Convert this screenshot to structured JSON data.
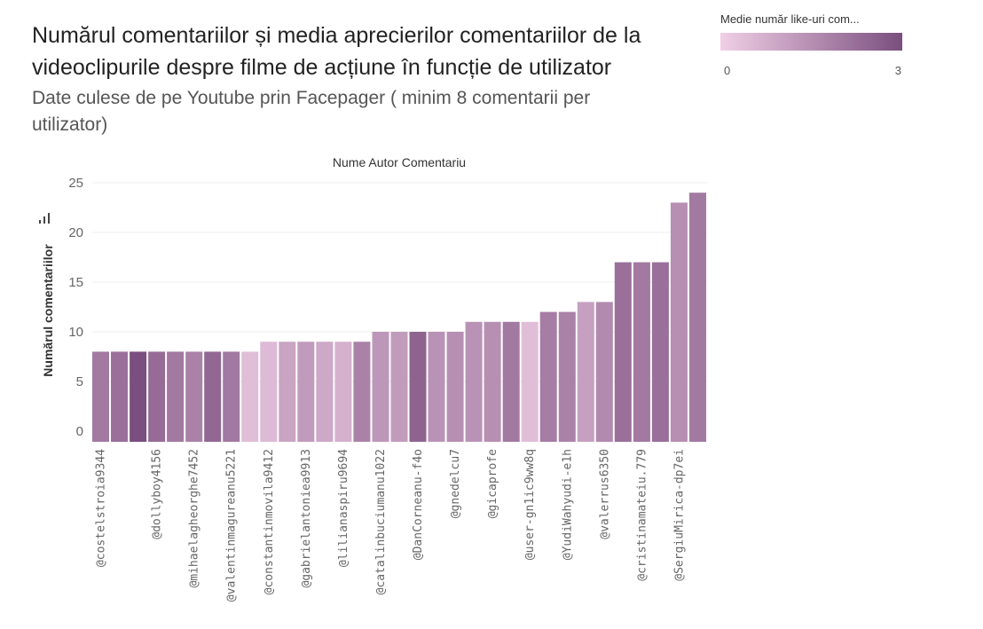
{
  "title": "Numărul comentariilor și media aprecierilor comentariilor de la videoclipurile despre filme de acțiune în funcție de utilizator",
  "subtitle": "Date culese de pe Youtube prin Facepager ( minim 8 comentarii per utilizator)",
  "legend": {
    "title": "Medie număr like-uri com...",
    "min_label": "0",
    "max_label": "3",
    "color_low": "#f1cfe6",
    "color_high": "#7a4e7e"
  },
  "chart_data": {
    "type": "bar",
    "title": "Numărul comentariilor și media aprecierilor comentariilor de la videoclipurile despre filme de acțiune în funcție de utilizator",
    "xlabel": "Nume Autor Comentariu",
    "ylabel": "Numărul comentariilor",
    "ylim": [
      0,
      25
    ],
    "yticks": [
      0,
      5,
      10,
      15,
      20,
      25
    ],
    "grid": true,
    "legend_position": "top-right",
    "bars": [
      {
        "label": "@costelstroia9344",
        "value": 8,
        "color_value": 2.0,
        "show_label": true
      },
      {
        "label": "",
        "value": 8,
        "color_value": 2.2,
        "show_label": false
      },
      {
        "label": "",
        "value": 8,
        "color_value": 3.0,
        "show_label": false
      },
      {
        "label": "@dollyboy4156",
        "value": 8,
        "color_value": 2.3,
        "show_label": true
      },
      {
        "label": "",
        "value": 8,
        "color_value": 2.0,
        "show_label": false
      },
      {
        "label": "@mihaelagheorghe7452",
        "value": 8,
        "color_value": 1.8,
        "show_label": true
      },
      {
        "label": "",
        "value": 8,
        "color_value": 2.4,
        "show_label": false
      },
      {
        "label": "@valentinmagureanu5221",
        "value": 8,
        "color_value": 2.0,
        "show_label": true
      },
      {
        "label": "",
        "value": 8,
        "color_value": 0.4,
        "show_label": false
      },
      {
        "label": "@constantinmovila9412",
        "value": 9,
        "color_value": 0.5,
        "show_label": true
      },
      {
        "label": "",
        "value": 9,
        "color_value": 1.0,
        "show_label": false
      },
      {
        "label": "@gabrielantoniea9913",
        "value": 9,
        "color_value": 1.2,
        "show_label": true
      },
      {
        "label": "",
        "value": 9,
        "color_value": 0.9,
        "show_label": false
      },
      {
        "label": "@lilianaspiru9694",
        "value": 9,
        "color_value": 0.7,
        "show_label": true
      },
      {
        "label": "",
        "value": 9,
        "color_value": 1.8,
        "show_label": false
      },
      {
        "label": "@catalinbuciumanu1022",
        "value": 10,
        "color_value": 1.3,
        "show_label": true
      },
      {
        "label": "",
        "value": 10,
        "color_value": 1.2,
        "show_label": false
      },
      {
        "label": "@DanCorneanu-f4o",
        "value": 10,
        "color_value": 2.5,
        "show_label": true
      },
      {
        "label": "",
        "value": 10,
        "color_value": 1.4,
        "show_label": false
      },
      {
        "label": "@gnedelcu7",
        "value": 10,
        "color_value": 1.5,
        "show_label": true
      },
      {
        "label": "",
        "value": 11,
        "color_value": 1.4,
        "show_label": false
      },
      {
        "label": "@gicaprofe",
        "value": 11,
        "color_value": 1.5,
        "show_label": true
      },
      {
        "label": "",
        "value": 11,
        "color_value": 2.0,
        "show_label": false
      },
      {
        "label": "@user-gn1ic9ww8q",
        "value": 11,
        "color_value": 0.4,
        "show_label": true
      },
      {
        "label": "",
        "value": 12,
        "color_value": 1.9,
        "show_label": false
      },
      {
        "label": "@YudiWahyudi-e1h",
        "value": 12,
        "color_value": 1.8,
        "show_label": true
      },
      {
        "label": "",
        "value": 13,
        "color_value": 1.1,
        "show_label": false
      },
      {
        "label": "@valerrus6350",
        "value": 13,
        "color_value": 1.6,
        "show_label": true
      },
      {
        "label": "",
        "value": 17,
        "color_value": 2.2,
        "show_label": false
      },
      {
        "label": "@cristinamateiu.779",
        "value": 17,
        "color_value": 2.0,
        "show_label": true
      },
      {
        "label": "",
        "value": 17,
        "color_value": 2.2,
        "show_label": false
      },
      {
        "label": "@SergiuMirica-dp7ei",
        "value": 23,
        "color_value": 1.5,
        "show_label": true
      },
      {
        "label": "",
        "value": 24,
        "color_value": 2.0,
        "show_label": false
      }
    ]
  }
}
